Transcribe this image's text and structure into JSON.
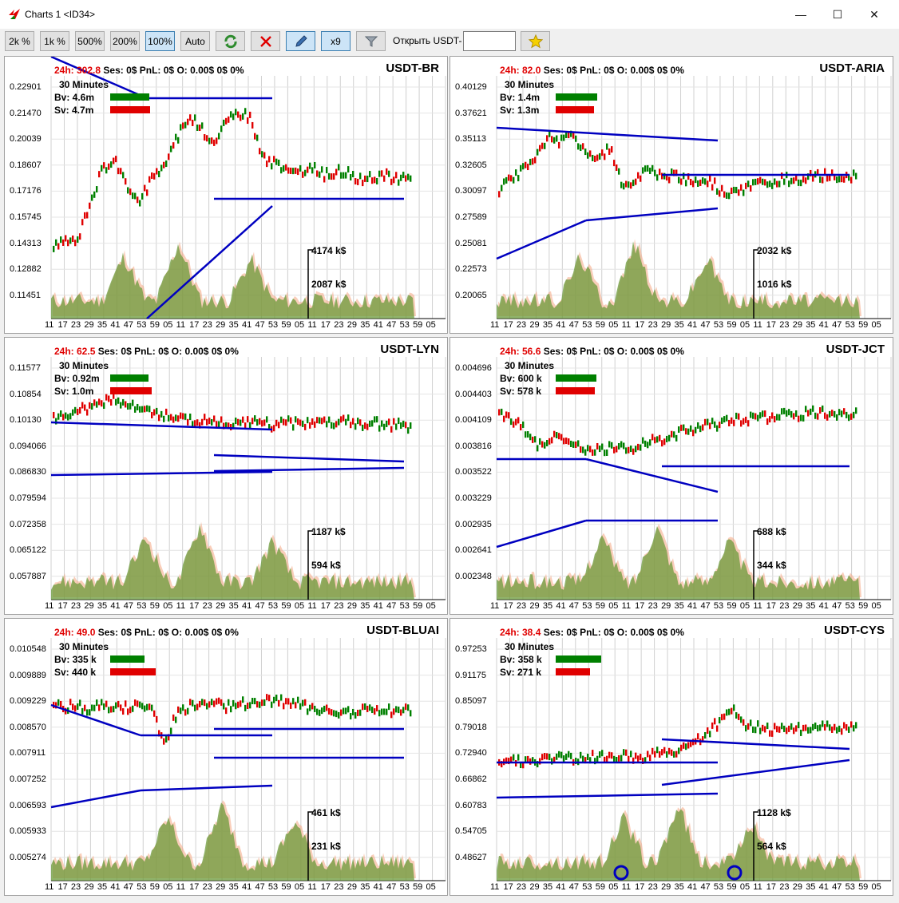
{
  "window": {
    "title": "Charts 1  <ID34>",
    "minimize": "—",
    "maximize": "☐",
    "close": "✕"
  },
  "toolbar": {
    "buttons": [
      "2k %",
      "1k %",
      "500%",
      "200%",
      "100%",
      "Auto"
    ],
    "active_button": "100%",
    "icons": [
      "refresh-icon",
      "close-red-icon",
      "pencil-icon",
      "x9",
      "filter-icon",
      "star-icon"
    ],
    "x9_label": "x9",
    "open_label": "Открыть USDT-",
    "open_input_value": ""
  },
  "x_ticks": [
    "11",
    "17",
    "23",
    "29",
    "35",
    "41",
    "47",
    "53",
    "59",
    "05",
    "11",
    "17",
    "23",
    "29",
    "35",
    "41",
    "47",
    "53",
    "59",
    "05",
    "11",
    "17",
    "23",
    "29",
    "35",
    "41",
    "47",
    "53",
    "59",
    "05"
  ],
  "colors": {
    "up": "#008000",
    "down": "#e00000",
    "trend": "#0000c0",
    "volume": "#6b9a3a",
    "volume_alt": "#f4a582",
    "accent_red": "#e00000"
  },
  "charts": [
    {
      "symbol": "USDT-BR",
      "h24": "24h: 302.8",
      "ses": "Ses: 0$",
      "pnl": "PnL: 0$",
      "o": "O: 0.00$",
      "d": "0$",
      "pct": "0%",
      "interval": "30 Minutes",
      "bv": "Bv: 4.6m",
      "sv": "Sv: 4.7m",
      "bv_fill": 0.49,
      "sv_fill": 0.5,
      "yticks": [
        "0.22901",
        "0.21470",
        "0.20039",
        "0.18607",
        "0.17176",
        "0.15745",
        "0.14313",
        "0.12882",
        "0.11451"
      ],
      "vol_top": "4174 k$",
      "vol_mid": "2087 k$"
    },
    {
      "symbol": "USDT-ARIA",
      "h24": "24h: 82.0",
      "ses": "Ses: 0$",
      "pnl": "PnL: 0$",
      "o": "O: 0.00$",
      "d": "0$",
      "pct": "0%",
      "interval": "30 Minutes",
      "bv": "Bv: 1.4m",
      "sv": "Sv: 1.3m",
      "bv_fill": 0.52,
      "sv_fill": 0.48,
      "yticks": [
        "0.40129",
        "0.37621",
        "0.35113",
        "0.32605",
        "0.30097",
        "0.27589",
        "0.25081",
        "0.22573",
        "0.20065"
      ],
      "vol_top": "2032 k$",
      "vol_mid": "1016 k$"
    },
    {
      "symbol": "USDT-LYN",
      "h24": "24h: 62.5",
      "ses": "Ses: 0$",
      "pnl": "PnL: 0$",
      "o": "O: 0.00$",
      "d": "0$",
      "pct": "0%",
      "interval": "30 Minutes",
      "bv": "Bv: 0.92m",
      "sv": "Sv: 1.0m",
      "bv_fill": 0.48,
      "sv_fill": 0.52,
      "yticks": [
        "0.11577",
        "0.10854",
        "0.10130",
        "0.094066",
        "0.086830",
        "0.079594",
        "0.072358",
        "0.065122",
        "0.057887"
      ],
      "vol_top": "1187 k$",
      "vol_mid": "594 k$"
    },
    {
      "symbol": "USDT-JCT",
      "h24": "24h: 56.6",
      "ses": "Ses: 0$",
      "pnl": "PnL: 0$",
      "o": "O: 0.00$",
      "d": "0$",
      "pct": "0%",
      "interval": "30 Minutes",
      "bv": "Bv: 600 k",
      "sv": "Sv: 578 k",
      "bv_fill": 0.51,
      "sv_fill": 0.49,
      "yticks": [
        "0.004696",
        "0.004403",
        "0.004109",
        "0.003816",
        "0.003522",
        "0.003229",
        "0.002935",
        "0.002641",
        "0.002348"
      ],
      "vol_top": "688 k$",
      "vol_mid": "344 k$"
    },
    {
      "symbol": "USDT-BLUAI",
      "h24": "24h: 49.0",
      "ses": "Ses: 0$",
      "pnl": "PnL: 0$",
      "o": "O: 0.00$",
      "d": "0$",
      "pct": "0%",
      "interval": "30 Minutes",
      "bv": "Bv: 335 k",
      "sv": "Sv: 440 k",
      "bv_fill": 0.43,
      "sv_fill": 0.57,
      "yticks": [
        "0.010548",
        "0.009889",
        "0.009229",
        "0.008570",
        "0.007911",
        "0.007252",
        "0.006593",
        "0.005933",
        "0.005274"
      ],
      "vol_top": "461 k$",
      "vol_mid": "231 k$"
    },
    {
      "symbol": "USDT-CYS",
      "h24": "24h: 38.4",
      "ses": "Ses: 0$",
      "pnl": "PnL: 0$",
      "o": "O: 0.00$",
      "d": "0$",
      "pct": "0%",
      "interval": "30 Minutes",
      "bv": "Bv: 358 k",
      "sv": "Sv: 271 k",
      "bv_fill": 0.57,
      "sv_fill": 0.43,
      "yticks": [
        "0.97253",
        "0.91175",
        "0.85097",
        "0.79018",
        "0.72940",
        "0.66862",
        "0.60783",
        "0.54705",
        "0.48627"
      ],
      "vol_top": "1128 k$",
      "vol_mid": "564 k$"
    }
  ]
}
